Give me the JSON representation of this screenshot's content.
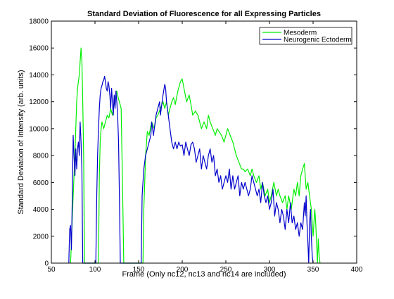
{
  "chart_data": {
    "type": "line",
    "title": "Standard Deviation of  Fluorescence for all Expressing Particles",
    "xlabel": "Frame (Only nc12, nc13 and nc14 are included)",
    "ylabel": "Standard Deviation of Intensity (arb. units)",
    "xlim": [
      50,
      400
    ],
    "ylim": [
      0,
      18000
    ],
    "xticks": [
      50,
      100,
      150,
      200,
      250,
      300,
      350,
      400
    ],
    "yticks": [
      0,
      2000,
      4000,
      6000,
      8000,
      10000,
      12000,
      14000,
      16000,
      18000
    ],
    "grid": false,
    "legend_position": "top-right",
    "colors": {
      "Mesoderm": "#00ee00",
      "Neurogenic Ectoderm": "#0000cc"
    },
    "series": [
      {
        "name": "Mesoderm",
        "points": [
          [
            72,
            0
          ],
          [
            73,
            1500
          ],
          [
            74,
            3500
          ],
          [
            75,
            5000
          ],
          [
            76,
            6500
          ],
          [
            77,
            8000
          ],
          [
            78,
            10000
          ],
          [
            79,
            12000
          ],
          [
            80,
            13000
          ],
          [
            81,
            13500
          ],
          [
            82,
            14000
          ],
          [
            83,
            15000
          ],
          [
            84,
            16000
          ],
          [
            85,
            15000
          ],
          [
            86,
            12000
          ],
          [
            87,
            8000
          ],
          [
            88,
            0
          ],
          [
            104,
            0
          ],
          [
            105,
            6500
          ],
          [
            106,
            9000
          ],
          [
            107,
            10000
          ],
          [
            108,
            10500
          ],
          [
            110,
            10000
          ],
          [
            112,
            10500
          ],
          [
            114,
            11000
          ],
          [
            116,
            10800
          ],
          [
            118,
            11500
          ],
          [
            120,
            11000
          ],
          [
            122,
            12000
          ],
          [
            124,
            12500
          ],
          [
            125,
            12800
          ],
          [
            126,
            12500
          ],
          [
            127,
            12200
          ],
          [
            128,
            12000
          ],
          [
            130,
            11500
          ],
          [
            131,
            8000
          ],
          [
            132,
            4000
          ],
          [
            133,
            0
          ],
          [
            155,
            0
          ],
          [
            156,
            4000
          ],
          [
            157,
            6000
          ],
          [
            158,
            8000
          ],
          [
            160,
            9800
          ],
          [
            162,
            9500
          ],
          [
            165,
            10500
          ],
          [
            168,
            10000
          ],
          [
            170,
            10800
          ],
          [
            172,
            11000
          ],
          [
            175,
            11500
          ],
          [
            178,
            12000
          ],
          [
            180,
            11500
          ],
          [
            182,
            12000
          ],
          [
            184,
            11000
          ],
          [
            186,
            11500
          ],
          [
            188,
            12000
          ],
          [
            190,
            12300
          ],
          [
            192,
            11800
          ],
          [
            195,
            12800
          ],
          [
            198,
            13500
          ],
          [
            200,
            13700
          ],
          [
            202,
            13000
          ],
          [
            205,
            12000
          ],
          [
            208,
            12500
          ],
          [
            210,
            11800
          ],
          [
            212,
            11000
          ],
          [
            215,
            11300
          ],
          [
            218,
            11000
          ],
          [
            220,
            10500
          ],
          [
            222,
            10000
          ],
          [
            225,
            10500
          ],
          [
            228,
            10000
          ],
          [
            230,
            11000
          ],
          [
            232,
            10500
          ],
          [
            235,
            10000
          ],
          [
            238,
            9500
          ],
          [
            240,
            10000
          ],
          [
            242,
            9800
          ],
          [
            245,
            9500
          ],
          [
            248,
            9000
          ],
          [
            250,
            9500
          ],
          [
            252,
            10000
          ],
          [
            255,
            9500
          ],
          [
            258,
            9000
          ],
          [
            260,
            8500
          ],
          [
            262,
            8000
          ],
          [
            265,
            7500
          ],
          [
            268,
            7000
          ],
          [
            270,
            7000
          ],
          [
            272,
            6800
          ],
          [
            275,
            7000
          ],
          [
            278,
            6500
          ],
          [
            280,
            7000
          ],
          [
            282,
            6500
          ],
          [
            285,
            6000
          ],
          [
            288,
            6500
          ],
          [
            290,
            5500
          ],
          [
            292,
            6000
          ],
          [
            295,
            5000
          ],
          [
            298,
            5500
          ],
          [
            300,
            4500
          ],
          [
            302,
            5000
          ],
          [
            305,
            6000
          ],
          [
            308,
            5000
          ],
          [
            310,
            5500
          ],
          [
            312,
            5000
          ],
          [
            315,
            4500
          ],
          [
            318,
            5000
          ],
          [
            320,
            4000
          ],
          [
            322,
            5000
          ],
          [
            325,
            4000
          ],
          [
            328,
            5500
          ],
          [
            330,
            5000
          ],
          [
            332,
            6000
          ],
          [
            334,
            5000
          ],
          [
            336,
            6500
          ],
          [
            338,
            7000
          ],
          [
            340,
            7400
          ],
          [
            341,
            6500
          ],
          [
            342,
            5500
          ],
          [
            344,
            6000
          ],
          [
            346,
            5000
          ],
          [
            348,
            4000
          ],
          [
            350,
            2000
          ],
          [
            351,
            3000
          ],
          [
            352,
            4000
          ],
          [
            353,
            3000
          ],
          [
            354,
            1500
          ],
          [
            355,
            0
          ],
          [
            356,
            1800
          ],
          [
            357,
            500
          ],
          [
            358,
            0
          ]
        ]
      },
      {
        "name": "Neurogenic Ectoderm",
        "points": [
          [
            70,
            0
          ],
          [
            71,
            2500
          ],
          [
            72,
            2800
          ],
          [
            73,
            1000
          ],
          [
            74,
            5000
          ],
          [
            75,
            9500
          ],
          [
            76,
            8000
          ],
          [
            77,
            6500
          ],
          [
            78,
            8500
          ],
          [
            79,
            7000
          ],
          [
            80,
            8500
          ],
          [
            81,
            9000
          ],
          [
            82,
            8000
          ],
          [
            83,
            10500
          ],
          [
            84,
            9000
          ],
          [
            85,
            7000
          ],
          [
            86,
            0
          ],
          [
            101,
            0
          ],
          [
            102,
            5000
          ],
          [
            103,
            8000
          ],
          [
            104,
            10000
          ],
          [
            105,
            11500
          ],
          [
            106,
            12500
          ],
          [
            107,
            13000
          ],
          [
            108,
            13200
          ],
          [
            109,
            13500
          ],
          [
            110,
            13600
          ],
          [
            111,
            13900
          ],
          [
            112,
            13500
          ],
          [
            113,
            13000
          ],
          [
            114,
            12800
          ],
          [
            115,
            13500
          ],
          [
            116,
            13200
          ],
          [
            117,
            12500
          ],
          [
            118,
            11500
          ],
          [
            119,
            13000
          ],
          [
            120,
            12000
          ],
          [
            121,
            11000
          ],
          [
            122,
            12500
          ],
          [
            123,
            11500
          ],
          [
            124,
            12800
          ],
          [
            125,
            12000
          ],
          [
            126,
            11000
          ],
          [
            127,
            9000
          ],
          [
            128,
            5000
          ],
          [
            129,
            0
          ],
          [
            153,
            0
          ],
          [
            154,
            5000
          ],
          [
            155,
            6000
          ],
          [
            156,
            7000
          ],
          [
            158,
            8000
          ],
          [
            160,
            8500
          ],
          [
            162,
            9000
          ],
          [
            164,
            9500
          ],
          [
            165,
            10500
          ],
          [
            167,
            9500
          ],
          [
            168,
            10000
          ],
          [
            170,
            11000
          ],
          [
            172,
            11500
          ],
          [
            174,
            12000
          ],
          [
            175,
            11000
          ],
          [
            176,
            11500
          ],
          [
            178,
            12500
          ],
          [
            180,
            13300
          ],
          [
            181,
            13000
          ],
          [
            182,
            12000
          ],
          [
            184,
            11000
          ],
          [
            186,
            10000
          ],
          [
            188,
            9000
          ],
          [
            190,
            8500
          ],
          [
            192,
            9000
          ],
          [
            194,
            8500
          ],
          [
            196,
            9000
          ],
          [
            198,
            8700
          ],
          [
            200,
            8800
          ],
          [
            202,
            8000
          ],
          [
            204,
            9000
          ],
          [
            206,
            8500
          ],
          [
            208,
            8000
          ],
          [
            210,
            8800
          ],
          [
            212,
            9000
          ],
          [
            214,
            8500
          ],
          [
            216,
            7500
          ],
          [
            218,
            8000
          ],
          [
            220,
            8500
          ],
          [
            222,
            7000
          ],
          [
            224,
            8000
          ],
          [
            226,
            7500
          ],
          [
            228,
            7000
          ],
          [
            230,
            8000
          ],
          [
            232,
            8500
          ],
          [
            234,
            7500
          ],
          [
            236,
            8000
          ],
          [
            238,
            6500
          ],
          [
            240,
            7000
          ],
          [
            242,
            6000
          ],
          [
            244,
            6500
          ],
          [
            246,
            5500
          ],
          [
            248,
            6000
          ],
          [
            250,
            6500
          ],
          [
            252,
            6000
          ],
          [
            254,
            7000
          ],
          [
            256,
            5500
          ],
          [
            258,
            6500
          ],
          [
            260,
            5500
          ],
          [
            262,
            6000
          ],
          [
            264,
            6500
          ],
          [
            266,
            5000
          ],
          [
            268,
            6000
          ],
          [
            270,
            5500
          ],
          [
            272,
            6000
          ],
          [
            274,
            5500
          ],
          [
            276,
            5000
          ],
          [
            278,
            5500
          ],
          [
            280,
            6500
          ],
          [
            282,
            6000
          ],
          [
            284,
            5500
          ],
          [
            286,
            5000
          ],
          [
            288,
            5500
          ],
          [
            290,
            4500
          ],
          [
            292,
            6000
          ],
          [
            294,
            5000
          ],
          [
            296,
            4500
          ],
          [
            298,
            5000
          ],
          [
            300,
            4000
          ],
          [
            302,
            4500
          ],
          [
            304,
            5500
          ],
          [
            306,
            3500
          ],
          [
            308,
            4500
          ],
          [
            310,
            4000
          ],
          [
            312,
            3000
          ],
          [
            314,
            4000
          ],
          [
            316,
            3500
          ],
          [
            318,
            2500
          ],
          [
            320,
            4000
          ],
          [
            322,
            3000
          ],
          [
            324,
            4500
          ],
          [
            326,
            3000
          ],
          [
            328,
            3500
          ],
          [
            330,
            2500
          ],
          [
            332,
            3000
          ],
          [
            334,
            2000
          ],
          [
            336,
            3000
          ],
          [
            338,
            2500
          ],
          [
            340,
            4500
          ],
          [
            341,
            3500
          ],
          [
            342,
            5000
          ],
          [
            343,
            3000
          ],
          [
            344,
            1500
          ],
          [
            345,
            0
          ],
          [
            346,
            3000
          ],
          [
            347,
            4000
          ],
          [
            348,
            2000
          ],
          [
            349,
            500
          ],
          [
            350,
            0
          ]
        ]
      }
    ]
  }
}
